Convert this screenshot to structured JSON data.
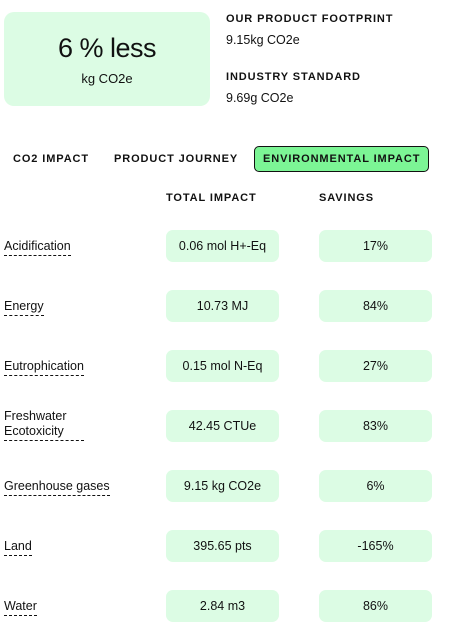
{
  "summary": {
    "headline": "6 % less",
    "unit": "kg CO2e"
  },
  "footprint": {
    "product_title": "OUR PRODUCT FOOTPRINT",
    "product_value": "9.15kg CO2e",
    "industry_title": "INDUSTRY STANDARD",
    "industry_value": "9.69g CO2e"
  },
  "tabs": [
    {
      "label": "CO2 IMPACT",
      "active": false
    },
    {
      "label": "PRODUCT JOURNEY",
      "active": false
    },
    {
      "label": "ENVIRONMENTAL IMPACT",
      "active": true
    }
  ],
  "table": {
    "headers": {
      "impact": "TOTAL IMPACT",
      "savings": "SAVINGS"
    },
    "rows": [
      {
        "label": "Acidification",
        "impact": "0.06 mol H+-Eq",
        "savings": "17%"
      },
      {
        "label": "Energy",
        "impact": "10.73 MJ",
        "savings": "84%"
      },
      {
        "label": "Eutrophication",
        "impact": "0.15 mol N-Eq",
        "savings": "27%"
      },
      {
        "label": "Freshwater Ecotoxicity",
        "impact": "42.45 CTUe",
        "savings": "83%"
      },
      {
        "label": "Greenhouse gases",
        "impact": "9.15 kg CO2e",
        "savings": "6%"
      },
      {
        "label": "Land",
        "impact": "395.65 pts",
        "savings": "-165%"
      },
      {
        "label": "Water",
        "impact": "2.84 m3",
        "savings": "86%"
      }
    ]
  },
  "colors": {
    "pill_background": "#dcfce4",
    "active_tab": "#7cf595",
    "text": "#111111"
  }
}
